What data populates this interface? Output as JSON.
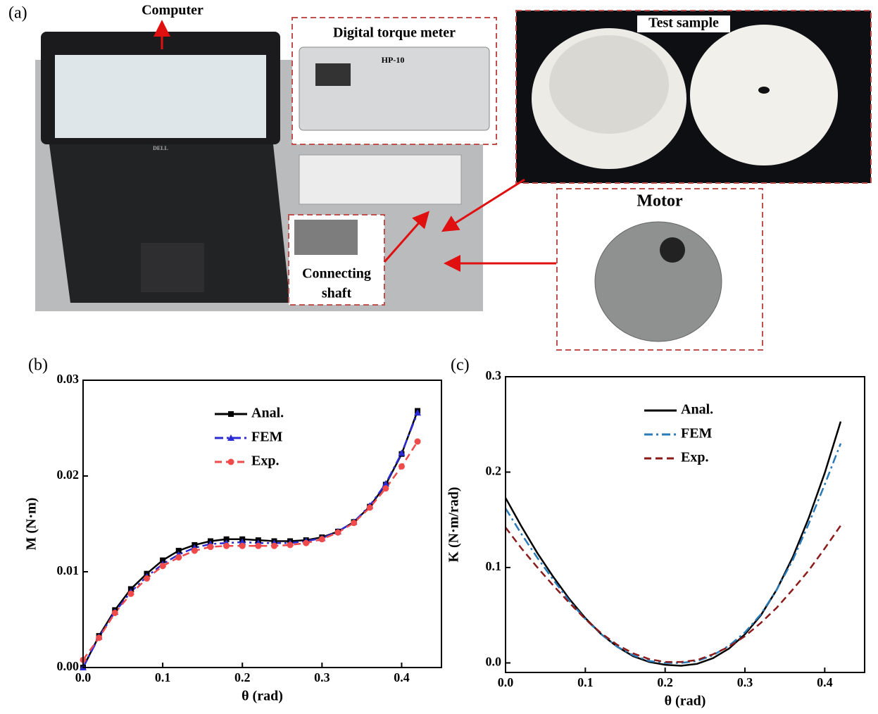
{
  "panel_a": {
    "label": "(a)",
    "computer": "Computer",
    "torque_meter": "Digital torque meter",
    "meter_model": "HP-10",
    "laptop_brand": "DELL",
    "test_sample": "Test sample",
    "motor": "Motor",
    "shaft": [
      "Connecting",
      "shaft"
    ]
  },
  "chart_data": [
    {
      "type": "line",
      "label": "(b)",
      "xlabel": "θ (rad)",
      "ylabel": "M (N·m)",
      "xlim": [
        0,
        0.45
      ],
      "ylim": [
        0,
        0.03
      ],
      "xticks": [
        {
          "value": 0,
          "label": "0.0"
        },
        0.1,
        0.2,
        0.3,
        0.4
      ],
      "yticks": [
        {
          "value": 0,
          "label": "0.00"
        },
        0.01,
        0.02,
        0.03
      ],
      "legend": "upper right",
      "x": [
        0,
        0.02,
        0.04,
        0.06,
        0.08,
        0.1,
        0.12,
        0.14,
        0.16,
        0.18,
        0.2,
        0.22,
        0.24,
        0.26,
        0.28,
        0.3,
        0.32,
        0.34,
        0.36,
        0.38,
        0.4,
        0.42
      ],
      "series": [
        {
          "name": "Anal.",
          "color": "#000000",
          "linestyle": "solid",
          "marker": "square",
          "values": [
            0,
            0.0033,
            0.006,
            0.0082,
            0.0098,
            0.0112,
            0.0122,
            0.0128,
            0.0132,
            0.0134,
            0.0134,
            0.0133,
            0.0132,
            0.0132,
            0.0133,
            0.0136,
            0.0142,
            0.0152,
            0.0168,
            0.0191,
            0.0223,
            0.0268
          ]
        },
        {
          "name": "FEM",
          "color": "#2b2bd6",
          "linestyle": "dashdot",
          "marker": "triangle",
          "values": [
            0,
            0.0032,
            0.0058,
            0.0079,
            0.0095,
            0.0108,
            0.0118,
            0.0125,
            0.0129,
            0.013,
            0.0131,
            0.013,
            0.013,
            0.013,
            0.0132,
            0.0135,
            0.0142,
            0.0152,
            0.0169,
            0.0192,
            0.0224,
            0.0266
          ]
        },
        {
          "name": "Exp.",
          "color": "#f04a4a",
          "linestyle": "dashed",
          "marker": "circle",
          "values": [
            0.0008,
            0.0031,
            0.0057,
            0.0077,
            0.0093,
            0.0106,
            0.0115,
            0.0122,
            0.0126,
            0.0127,
            0.0127,
            0.0127,
            0.0127,
            0.0128,
            0.013,
            0.0134,
            0.0141,
            0.0151,
            0.0167,
            0.0187,
            0.021,
            0.0236
          ]
        }
      ]
    },
    {
      "type": "line",
      "label": "(c)",
      "xlabel": "θ (rad)",
      "ylabel": "K (N·m/rad)",
      "xlim": [
        0,
        0.45
      ],
      "ylim": [
        -0.01,
        0.3
      ],
      "xticks": [
        {
          "value": 0,
          "label": "0.0"
        },
        0.1,
        0.2,
        0.3,
        0.4
      ],
      "yticks": [
        {
          "value": 0,
          "label": "0.0"
        },
        0.1,
        0.2,
        0.3
      ],
      "legend": "upper right",
      "x": [
        0,
        0.02,
        0.04,
        0.06,
        0.08,
        0.1,
        0.12,
        0.14,
        0.16,
        0.18,
        0.2,
        0.22,
        0.24,
        0.26,
        0.28,
        0.3,
        0.32,
        0.34,
        0.36,
        0.38,
        0.4,
        0.42
      ],
      "series": [
        {
          "name": "Anal.",
          "color": "#000000",
          "linestyle": "solid",
          "values": [
            0.173,
            0.143,
            0.115,
            0.09,
            0.067,
            0.047,
            0.03,
            0.017,
            0.007,
            0.001,
            -0.002,
            -0.003,
            -0.001,
            0.005,
            0.015,
            0.03,
            0.05,
            0.077,
            0.111,
            0.152,
            0.199,
            0.253
          ]
        },
        {
          "name": "FEM",
          "color": "#2a7ab8",
          "linestyle": "dashdot",
          "values": [
            0.162,
            0.135,
            0.11,
            0.087,
            0.065,
            0.046,
            0.03,
            0.017,
            0.008,
            0.002,
            0,
            0,
            0.002,
            0.008,
            0.018,
            0.032,
            0.051,
            0.077,
            0.108,
            0.146,
            0.187,
            0.23
          ]
        },
        {
          "name": "Exp.",
          "color": "#8b1a1a",
          "linestyle": "dashed",
          "values": [
            0.142,
            0.12,
            0.1,
            0.081,
            0.063,
            0.046,
            0.031,
            0.019,
            0.01,
            0.004,
            0.001,
            0.001,
            0.003,
            0.009,
            0.017,
            0.028,
            0.042,
            0.058,
            0.077,
            0.097,
            0.12,
            0.144
          ]
        }
      ]
    }
  ]
}
